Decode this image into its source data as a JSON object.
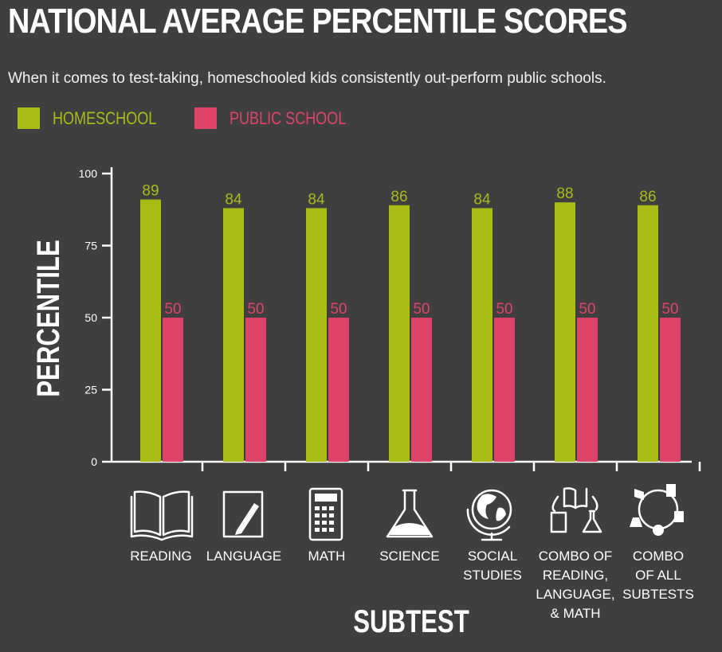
{
  "header": {
    "title": "NATIONAL AVERAGE PERCENTILE SCORES",
    "subtitle": "When it comes to test-taking, homeschooled kids consistently out-perform public schools."
  },
  "legend": [
    {
      "label": "HOMESCHOOL",
      "color": "#a9bb17"
    },
    {
      "label": "PUBLIC SCHOOL",
      "color": "#e0436a"
    }
  ],
  "chart_data": {
    "type": "bar",
    "title": "NATIONAL AVERAGE PERCENTILE SCORES",
    "subtitle": "When it comes to test-taking, homeschooled kids consistently out-perform public schools.",
    "xlabel": "SUBTEST",
    "ylabel": "PERCENTILE",
    "ylim": [
      0,
      100
    ],
    "yticks": [
      "0",
      "25",
      "50",
      "75",
      "100"
    ],
    "categories": [
      [
        "READING"
      ],
      [
        "LANGUAGE"
      ],
      [
        "MATH"
      ],
      [
        "SCIENCE"
      ],
      [
        "SOCIAL",
        "STUDIES"
      ],
      [
        "COMBO OF",
        "READING,",
        "LANGUAGE,",
        "& MATH"
      ],
      [
        "COMBO",
        "OF ALL",
        "SUBTESTS"
      ]
    ],
    "category_icons": [
      "open-book-icon",
      "notepad-pencil-icon",
      "calculator-icon",
      "flask-icon",
      "globe-icon",
      "combo-book-notepad-flask-icon",
      "combo-all-subjects-icon"
    ],
    "series": [
      {
        "name": "HOMESCHOOL",
        "color": "#a9bb17",
        "values": [
          89,
          84,
          84,
          86,
          84,
          88,
          86
        ],
        "bar_heights": [
          91,
          88,
          88,
          89,
          88,
          90,
          89
        ]
      },
      {
        "name": "PUBLIC SCHOOL",
        "color": "#e0436a",
        "values": [
          50,
          50,
          50,
          50,
          50,
          50,
          50
        ],
        "bar_heights": [
          50,
          50,
          50,
          50,
          50,
          50,
          50
        ]
      }
    ],
    "grid": false,
    "legend_position": "top-left"
  }
}
